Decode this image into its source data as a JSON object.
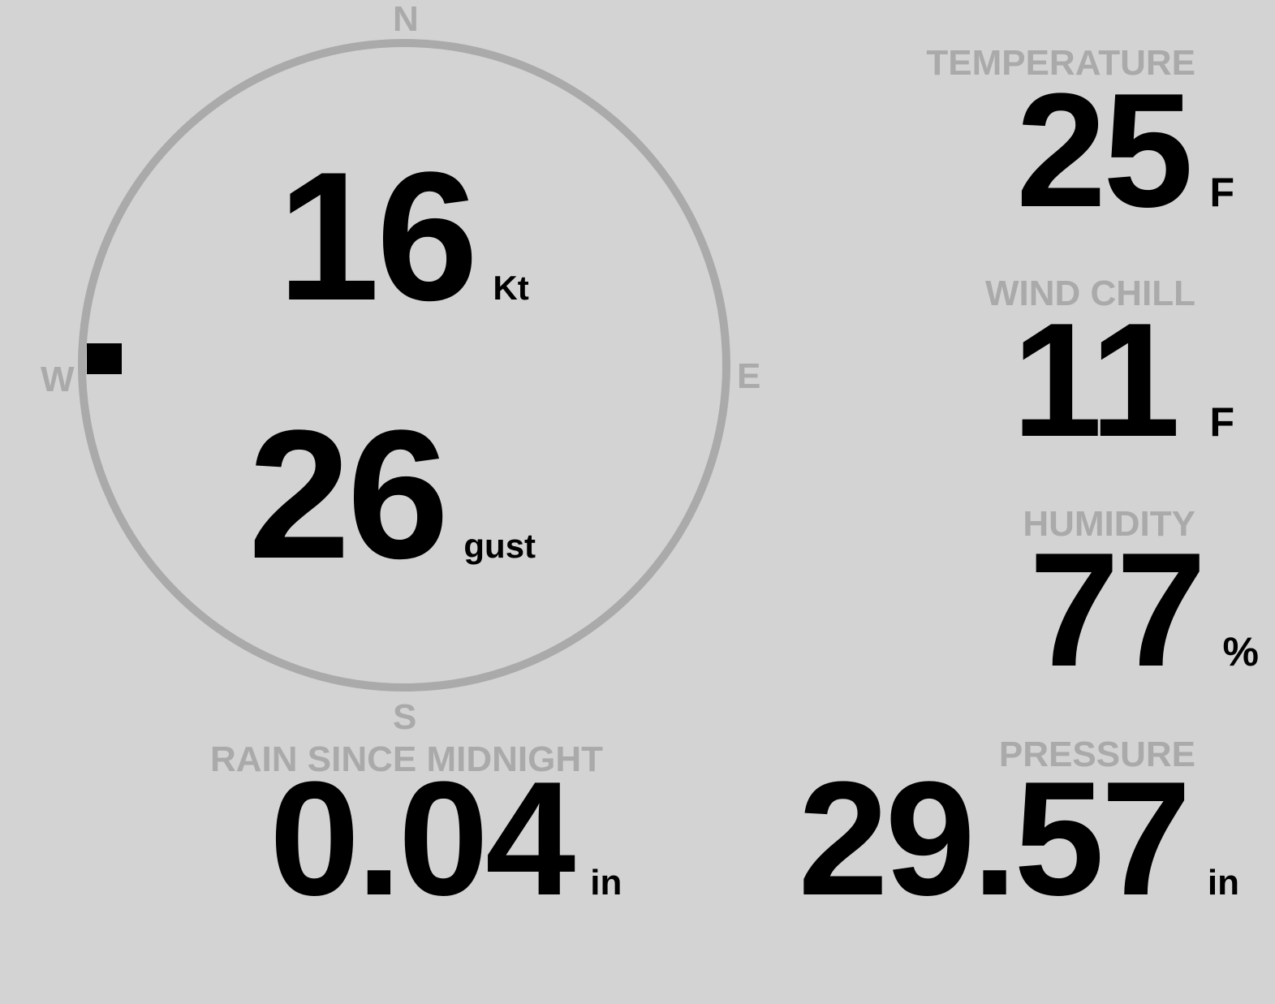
{
  "colors": {
    "background": "#d3d3d3",
    "label": "#aaaaaa",
    "value": "#000000",
    "dial": "#aaaaaa"
  },
  "wind": {
    "compass": {
      "n": "N",
      "e": "E",
      "s": "S",
      "w": "W"
    },
    "direction": "W",
    "direction_icon": "square-marker-icon",
    "speed": "16",
    "speed_unit": "Kt",
    "gust": "26",
    "gust_unit": "gust"
  },
  "temperature": {
    "label": "TEMPERATURE",
    "value": "25",
    "unit": "F"
  },
  "wind_chill": {
    "label": "WIND CHILL",
    "value": "11",
    "unit": "F"
  },
  "humidity": {
    "label": "HUMIDITY",
    "value": "77",
    "unit": "%"
  },
  "rain": {
    "label": "RAIN SINCE MIDNIGHT",
    "value": "0.04",
    "unit": "in"
  },
  "pressure": {
    "label": "PRESSURE",
    "value": "29.57",
    "unit": "in"
  }
}
